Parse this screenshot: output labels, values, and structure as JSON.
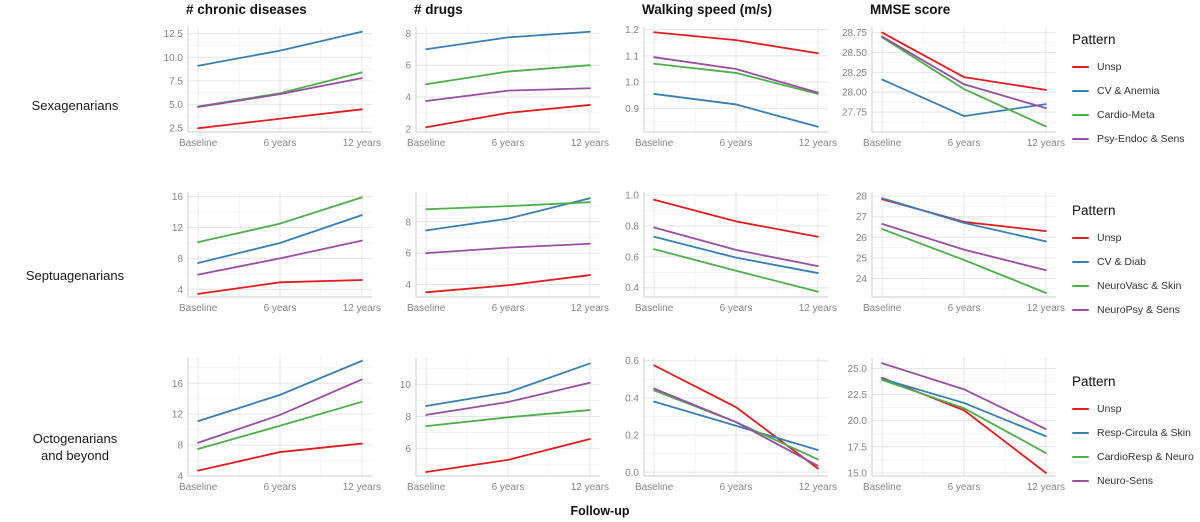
{
  "figure": {
    "xlabel": "Follow-up",
    "legend_title": "Pattern",
    "palette": {
      "red": "#e41a1c",
      "blue": "#377eb8",
      "green": "#4daf4a",
      "purple": "#984ea3"
    }
  },
  "chart_data": {
    "type": "line",
    "x_categories": [
      "Baseline",
      "6 years",
      "12 years"
    ],
    "xlabel": "Follow-up",
    "legend_position": "right",
    "grid": true,
    "rows": [
      {
        "group_label": "Sexagenarians",
        "group_label_line2": "",
        "legend_title": "Pattern",
        "legend": [
          {
            "name": "Unsp",
            "color": "#e41a1c"
          },
          {
            "name": "CV & Anemia",
            "color": "#377eb8"
          },
          {
            "name": "Cardio-Meta",
            "color": "#4daf4a"
          },
          {
            "name": "Psy-Endoc & Sens",
            "color": "#984ea3"
          }
        ],
        "charts": [
          {
            "title": "# chronic diseases",
            "ylim": [
              2.1,
              13.2
            ],
            "yticks": [
              2.5,
              5,
              7.5,
              10,
              12.5
            ],
            "ytick_labels": [
              "2.5",
              "5.0",
              "7.5",
              "10.0",
              "12.5"
            ],
            "series": [
              {
                "name": "Unsp",
                "color": "#e41a1c",
                "values": [
                  2.5,
                  3.5,
                  4.5
                ]
              },
              {
                "name": "CV & Anemia",
                "color": "#377eb8",
                "values": [
                  9.1,
                  10.7,
                  12.7
                ]
              },
              {
                "name": "Cardio-Meta",
                "color": "#4daf4a",
                "values": [
                  4.8,
                  6.2,
                  8.4
                ]
              },
              {
                "name": "Psy-Endoc & Sens",
                "color": "#984ea3",
                "values": [
                  4.75,
                  6.1,
                  7.8
                ]
              }
            ]
          },
          {
            "title": "# drugs",
            "ylim": [
              1.8,
              8.4
            ],
            "yticks": [
              2,
              4,
              6,
              8
            ],
            "ytick_labels": [
              "2",
              "4",
              "6",
              "8"
            ],
            "series": [
              {
                "name": "Unsp",
                "color": "#e41a1c",
                "values": [
                  2.1,
                  3.0,
                  3.5
                ]
              },
              {
                "name": "CV & Anemia",
                "color": "#377eb8",
                "values": [
                  7.0,
                  7.75,
                  8.1
                ]
              },
              {
                "name": "Cardio-Meta",
                "color": "#4daf4a",
                "values": [
                  4.8,
                  5.6,
                  6.0
                ]
              },
              {
                "name": "Psy-Endoc & Sens",
                "color": "#984ea3",
                "values": [
                  3.75,
                  4.4,
                  4.55
                ]
              }
            ]
          },
          {
            "title": "Walking speed (m/s)",
            "ylim": [
              0.81,
              1.21
            ],
            "yticks": [
              0.9,
              1.0,
              1.1,
              1.2
            ],
            "ytick_labels": [
              "0.9",
              "1.0",
              "1.1",
              "1.2"
            ],
            "series": [
              {
                "name": "Unsp",
                "color": "#e41a1c",
                "values": [
                  1.19,
                  1.16,
                  1.11
                ]
              },
              {
                "name": "CV & Anemia",
                "color": "#377eb8",
                "values": [
                  0.955,
                  0.915,
                  0.83
                ]
              },
              {
                "name": "Cardio-Meta",
                "color": "#4daf4a",
                "values": [
                  1.07,
                  1.035,
                  0.955
                ]
              },
              {
                "name": "Psy-Endoc & Sens",
                "color": "#984ea3",
                "values": [
                  1.095,
                  1.05,
                  0.96
                ]
              }
            ]
          },
          {
            "title": "MMSE score",
            "ylim": [
              27.5,
              28.82
            ],
            "yticks": [
              27.75,
              28.0,
              28.25,
              28.5,
              28.75
            ],
            "ytick_labels": [
              "27.75",
              "28.00",
              "28.25",
              "28.50",
              "28.75"
            ],
            "series": [
              {
                "name": "Unsp",
                "color": "#e41a1c",
                "values": [
                  28.75,
                  28.19,
                  28.03
                ]
              },
              {
                "name": "CV & Anemia",
                "color": "#377eb8",
                "values": [
                  28.16,
                  27.7,
                  27.85
                ]
              },
              {
                "name": "Cardio-Meta",
                "color": "#4daf4a",
                "values": [
                  28.69,
                  28.04,
                  27.57
                ]
              },
              {
                "name": "Psy-Endoc & Sens",
                "color": "#984ea3",
                "values": [
                  28.7,
                  28.1,
                  27.8
                ]
              }
            ]
          }
        ]
      },
      {
        "group_label": "Septuagenarians",
        "group_label_line2": "",
        "legend_title": "Pattern",
        "legend": [
          {
            "name": "Unsp",
            "color": "#e41a1c"
          },
          {
            "name": "CV & Diab",
            "color": "#377eb8"
          },
          {
            "name": "NeuroVasc & Skin",
            "color": "#4daf4a"
          },
          {
            "name": "NeuroPsy & Sens",
            "color": "#984ea3"
          }
        ],
        "charts": [
          {
            "title": "",
            "ylim": [
              3.0,
              16.6
            ],
            "yticks": [
              4,
              8,
              12,
              16
            ],
            "ytick_labels": [
              "4",
              "8",
              "12",
              "16"
            ],
            "series": [
              {
                "name": "Unsp",
                "color": "#e41a1c",
                "values": [
                  3.4,
                  4.9,
                  5.2
                ]
              },
              {
                "name": "CV & Diab",
                "color": "#377eb8",
                "values": [
                  7.4,
                  10.0,
                  13.6
                ]
              },
              {
                "name": "NeuroVasc & Skin",
                "color": "#4daf4a",
                "values": [
                  10.1,
                  12.5,
                  15.9
                ]
              },
              {
                "name": "NeuroPsy & Sens",
                "color": "#984ea3",
                "values": [
                  5.9,
                  8.0,
                  10.3
                ]
              }
            ]
          },
          {
            "title": "",
            "ylim": [
              3.2,
              9.9
            ],
            "yticks": [
              4,
              6,
              8
            ],
            "ytick_labels": [
              "4",
              "6",
              "8"
            ],
            "series": [
              {
                "name": "Unsp",
                "color": "#e41a1c",
                "values": [
                  3.5,
                  3.95,
                  4.6
                ]
              },
              {
                "name": "CV & Diab",
                "color": "#377eb8",
                "values": [
                  7.45,
                  8.2,
                  9.5
                ]
              },
              {
                "name": "NeuroVasc & Skin",
                "color": "#4daf4a",
                "values": [
                  8.8,
                  9.0,
                  9.25
                ]
              },
              {
                "name": "NeuroPsy & Sens",
                "color": "#984ea3",
                "values": [
                  6.0,
                  6.35,
                  6.6
                ]
              }
            ]
          },
          {
            "title": "",
            "ylim": [
              0.34,
              1.02
            ],
            "yticks": [
              0.4,
              0.6,
              0.8,
              1.0
            ],
            "ytick_labels": [
              "0.4",
              "0.6",
              "0.8",
              "1.0"
            ],
            "series": [
              {
                "name": "Unsp",
                "color": "#e41a1c",
                "values": [
                  0.97,
                  0.83,
                  0.73
                ]
              },
              {
                "name": "CV & Diab",
                "color": "#377eb8",
                "values": [
                  0.73,
                  0.595,
                  0.495
                ]
              },
              {
                "name": "NeuroVasc & Skin",
                "color": "#4daf4a",
                "values": [
                  0.65,
                  0.51,
                  0.375
                ]
              },
              {
                "name": "NeuroPsy & Sens",
                "color": "#984ea3",
                "values": [
                  0.79,
                  0.645,
                  0.54
                ]
              }
            ]
          },
          {
            "title": "",
            "ylim": [
              23.1,
              28.2
            ],
            "yticks": [
              24,
              25,
              26,
              27,
              28
            ],
            "ytick_labels": [
              "24",
              "25",
              "26",
              "27",
              "28"
            ],
            "series": [
              {
                "name": "Unsp",
                "color": "#e41a1c",
                "values": [
                  27.85,
                  26.75,
                  26.3
                ]
              },
              {
                "name": "CV & Diab",
                "color": "#377eb8",
                "values": [
                  27.9,
                  26.7,
                  25.8
                ]
              },
              {
                "name": "NeuroVasc & Skin",
                "color": "#4daf4a",
                "values": [
                  26.4,
                  24.9,
                  23.3
                ]
              },
              {
                "name": "NeuroPsy & Sens",
                "color": "#984ea3",
                "values": [
                  26.65,
                  25.4,
                  24.4
                ]
              }
            ]
          }
        ]
      },
      {
        "group_label": "Octogenarians",
        "group_label_line2": "and beyond",
        "legend_title": "Pattern",
        "legend": [
          {
            "name": "Unsp",
            "color": "#e41a1c"
          },
          {
            "name": "Resp-Circula & Skin",
            "color": "#377eb8"
          },
          {
            "name": "CardioResp & Neuro",
            "color": "#4daf4a"
          },
          {
            "name": "Neuro-Sens",
            "color": "#984ea3"
          }
        ],
        "charts": [
          {
            "title": "",
            "ylim": [
              4.0,
              19.4
            ],
            "yticks": [
              4,
              8,
              12,
              16
            ],
            "ytick_labels": [
              "4",
              "8",
              "12",
              "16"
            ],
            "series": [
              {
                "name": "Unsp",
                "color": "#e41a1c",
                "values": [
                  4.7,
                  7.1,
                  8.2
                ]
              },
              {
                "name": "Resp-Circula & Skin",
                "color": "#377eb8",
                "values": [
                  11.1,
                  14.5,
                  18.9
                ]
              },
              {
                "name": "CardioResp & Neuro",
                "color": "#4daf4a",
                "values": [
                  7.5,
                  10.5,
                  13.6
                ]
              },
              {
                "name": "Neuro-Sens",
                "color": "#984ea3",
                "values": [
                  8.3,
                  11.9,
                  16.5
                ]
              }
            ]
          },
          {
            "title": "",
            "ylim": [
              4.3,
              11.7
            ],
            "yticks": [
              6,
              8,
              10
            ],
            "ytick_labels": [
              "6",
              "8",
              "10"
            ],
            "series": [
              {
                "name": "Unsp",
                "color": "#e41a1c",
                "values": [
                  4.55,
                  5.3,
                  6.6
                ]
              },
              {
                "name": "Resp-Circula & Skin",
                "color": "#377eb8",
                "values": [
                  8.65,
                  9.5,
                  11.3
                ]
              },
              {
                "name": "CardioResp & Neuro",
                "color": "#4daf4a",
                "values": [
                  7.4,
                  7.95,
                  8.4
                ]
              },
              {
                "name": "Neuro-Sens",
                "color": "#984ea3",
                "values": [
                  8.1,
                  8.9,
                  10.1
                ]
              }
            ]
          },
          {
            "title": "",
            "ylim": [
              -0.02,
              0.62
            ],
            "yticks": [
              0.0,
              0.2,
              0.4,
              0.6
            ],
            "ytick_labels": [
              "0.0",
              "0.2",
              "0.4",
              "0.6"
            ],
            "series": [
              {
                "name": "Unsp",
                "color": "#e41a1c",
                "values": [
                  0.575,
                  0.35,
                  0.02
                ]
              },
              {
                "name": "Resp-Circula & Skin",
                "color": "#377eb8",
                "values": [
                  0.38,
                  0.25,
                  0.12
                ]
              },
              {
                "name": "CardioResp & Neuro",
                "color": "#4daf4a",
                "values": [
                  0.44,
                  0.27,
                  0.07
                ]
              },
              {
                "name": "Neuro-Sens",
                "color": "#984ea3",
                "values": [
                  0.45,
                  0.27,
                  0.035
                ]
              }
            ]
          },
          {
            "title": "",
            "ylim": [
              14.7,
              26.1
            ],
            "yticks": [
              15,
              17.5,
              20,
              22.5,
              25
            ],
            "ytick_labels": [
              "15.0",
              "17.5",
              "20.0",
              "22.5",
              "25.0"
            ],
            "series": [
              {
                "name": "Unsp",
                "color": "#e41a1c",
                "values": [
                  24.1,
                  21.0,
                  15.0
                ]
              },
              {
                "name": "Resp-Circula & Skin",
                "color": "#377eb8",
                "values": [
                  24.0,
                  21.7,
                  18.5
                ]
              },
              {
                "name": "CardioResp & Neuro",
                "color": "#4daf4a",
                "values": [
                  23.9,
                  21.2,
                  16.9
                ]
              },
              {
                "name": "Neuro-Sens",
                "color": "#984ea3",
                "values": [
                  25.5,
                  23.0,
                  19.2
                ]
              }
            ]
          }
        ]
      }
    ]
  }
}
